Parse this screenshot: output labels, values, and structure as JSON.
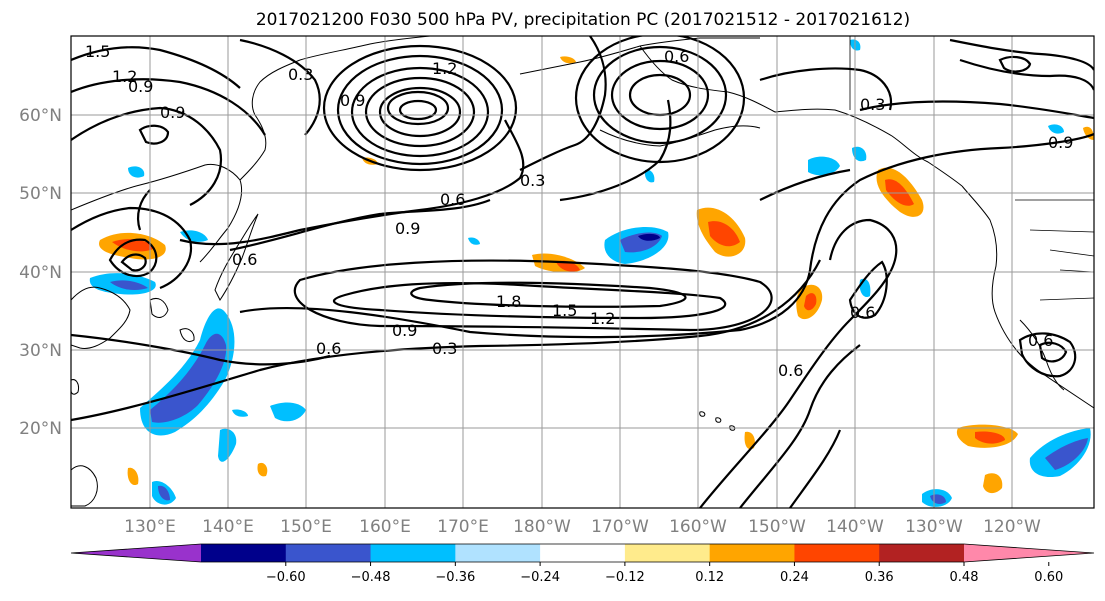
{
  "title": "2017021200 F030 500 hPa PV, precipitation PC (2017021512 - 2017021612)",
  "lat_labels": [
    "60°N",
    "50°N",
    "40°N",
    "30°N",
    "20°N"
  ],
  "lon_labels": [
    "130°E",
    "140°E",
    "150°E",
    "160°E",
    "170°E",
    "180°W",
    "170°W",
    "160°W",
    "150°W",
    "140°W",
    "130°W",
    "120°W"
  ],
  "colorbar": {
    "colors": [
      "#9932cc",
      "#00008b",
      "#3a55cd",
      "#00bfff",
      "#b0e2ff",
      "#ffffff",
      "#ffeb8c",
      "#ffa500",
      "#ff4500",
      "#b22222",
      "#ff88aa"
    ],
    "tick_labels": [
      "−0.60",
      "−0.48",
      "−0.36",
      "−0.24",
      "−0.12",
      "0.12",
      "0.24",
      "0.36",
      "0.48",
      "0.60"
    ]
  },
  "contour_labels": [
    "1.5",
    "1.2",
    "0.9",
    "0.3",
    "0.9",
    "1.2",
    "0.9",
    "0.6",
    "0.6",
    "0.9",
    "0.3",
    "1.8",
    "1.5",
    "1.2",
    "0.9",
    "0.6",
    "0.3",
    "0.6",
    "0.6",
    "0.3",
    "0.9",
    "0.6",
    "0.6"
  ]
}
